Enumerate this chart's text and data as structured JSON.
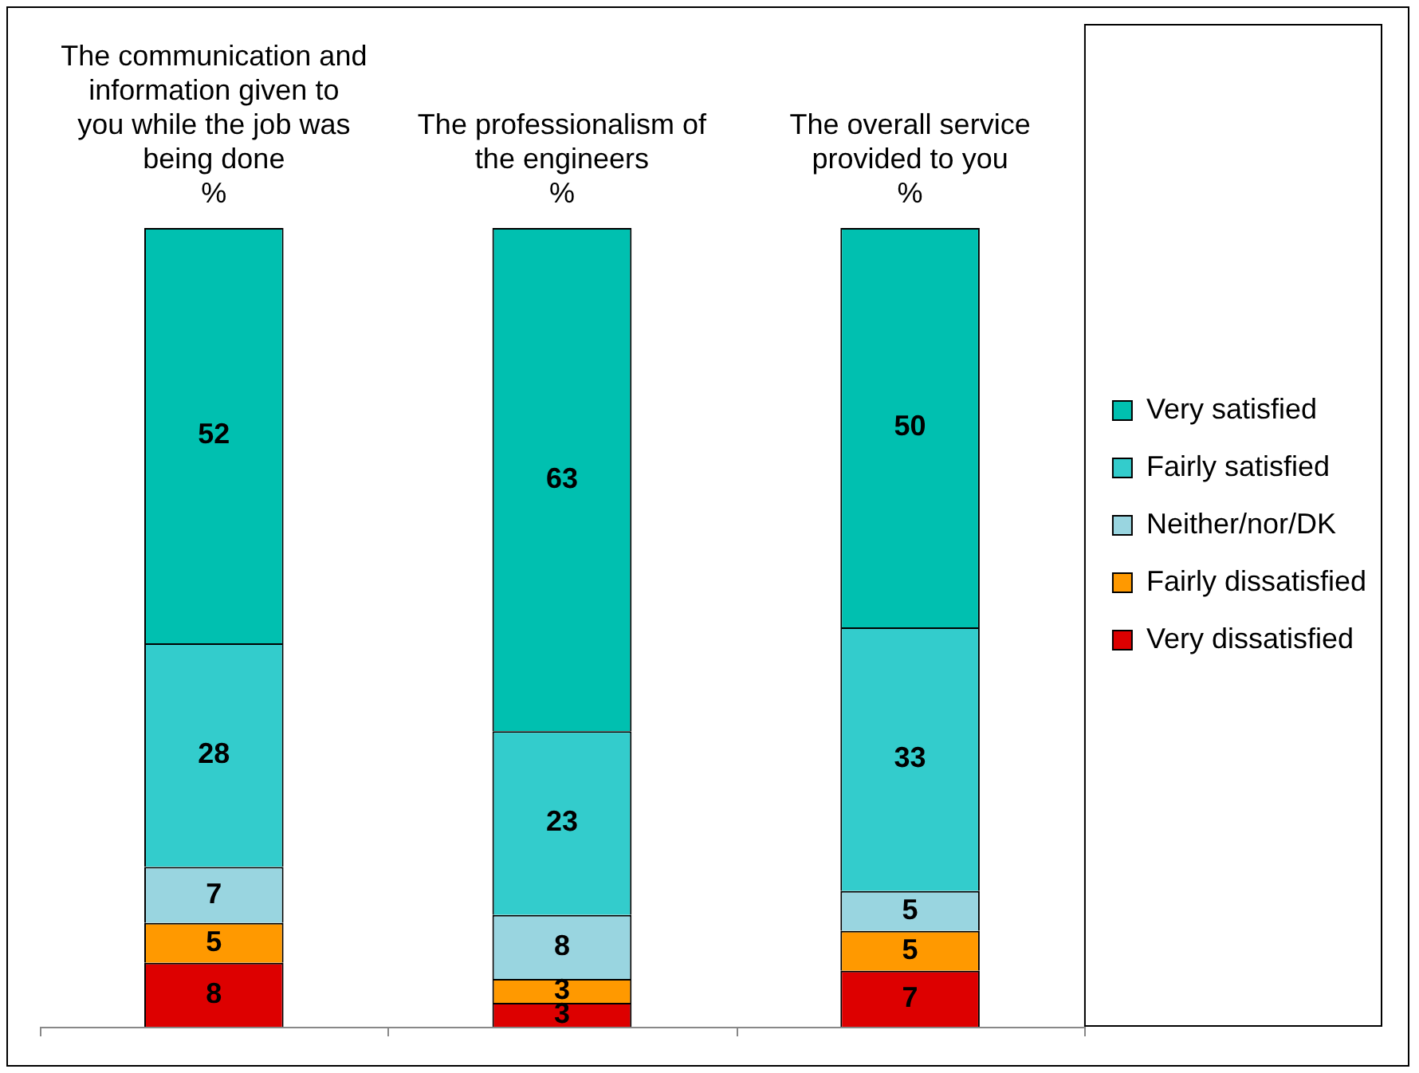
{
  "chart_data": {
    "type": "bar",
    "stacked": true,
    "data_labels": true,
    "legend": "right",
    "grid": false,
    "ylim": [
      0,
      100
    ],
    "tick_labels": "x",
    "categories": [
      "The communication and information given to you while the job was being done\n%",
      "The professionalism of the engineers\n%",
      "The overall service provided to you\n%"
    ],
    "series": [
      {
        "name": "Very dissatisfied",
        "color": "#dd0000",
        "values": [
          8,
          3,
          7
        ]
      },
      {
        "name": "Fairly dissatisfied",
        "color": "#ff9900",
        "values": [
          5,
          3,
          5
        ]
      },
      {
        "name": "Neither/nor/DK",
        "color": "#99d5e0",
        "values": [
          7,
          8,
          5
        ]
      },
      {
        "name": "Fairly satisfied",
        "color": "#33cccc",
        "values": [
          28,
          23,
          33
        ]
      },
      {
        "name": "Very satisfied",
        "color": "#00c0b0",
        "values": [
          52,
          63,
          50
        ]
      }
    ]
  }
}
